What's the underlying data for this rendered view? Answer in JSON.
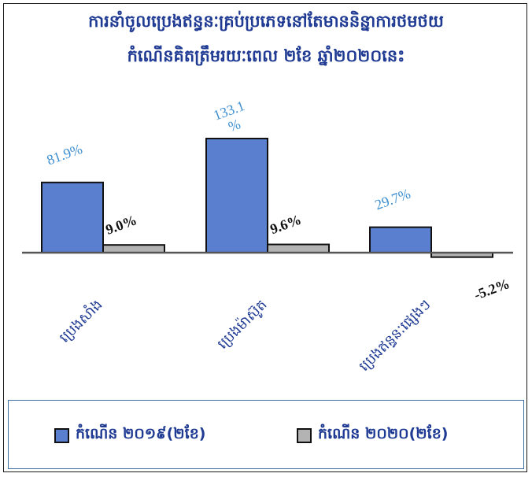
{
  "chart_data": {
    "type": "bar",
    "title_line1": "ការនាំចូលប្រេងឥន្ធនៈគ្រប់ប្រភេទនៅតែមាននិន្នាការថមថយ",
    "title_line2": "កំណើនគិតត្រឹមរយៈពេល ២ខែ ឆ្នាំ២០២០នេះ",
    "categories": [
      "ប្រេងសាំង",
      "ប្រេងម៉ាស៊ូត",
      "ប្រេងឥន្ធនៈផ្សេងៗ"
    ],
    "series": [
      {
        "name": "កំណើន ២០១៩(២ខែ)",
        "values": [
          81.9,
          133.1,
          29.7
        ],
        "color": "#5b7fcf"
      },
      {
        "name": "កំណើន ២០២០(២ខែ)",
        "values": [
          9.0,
          9.6,
          -5.2
        ],
        "color": "#b3b3b3"
      }
    ],
    "data_labels": [
      [
        "81.9%",
        "133.1 %",
        "29.7%"
      ],
      [
        "9.0%",
        "9.6%",
        "-5.2%"
      ]
    ],
    "label_colors": [
      "#3d8fd1",
      "#111111"
    ],
    "legend_position": "bottom",
    "grid": false
  }
}
